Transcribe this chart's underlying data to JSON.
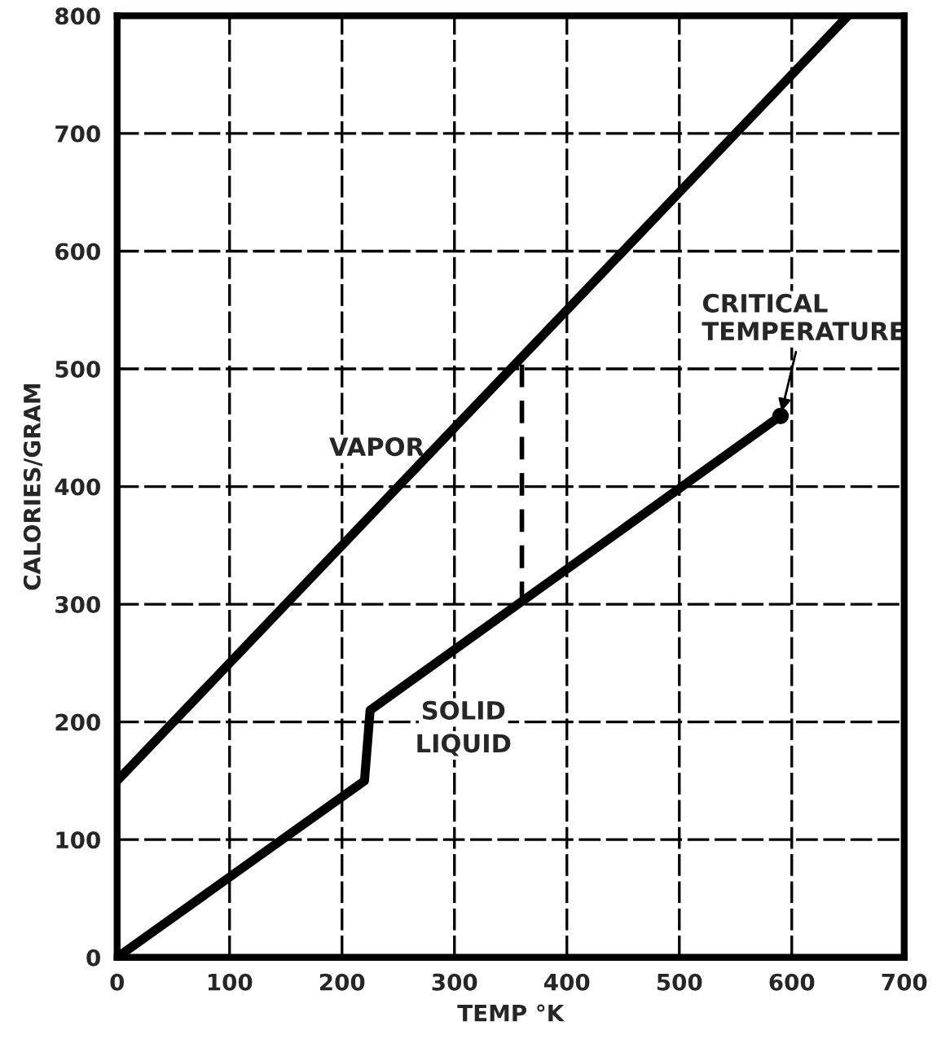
{
  "chart_data": {
    "type": "line",
    "xlabel": "TEMP °K",
    "ylabel": "CALORIES/GRAM",
    "xlim": [
      0,
      700
    ],
    "ylim": [
      0,
      800
    ],
    "xticks": [
      0,
      100,
      200,
      300,
      400,
      500,
      600,
      700
    ],
    "yticks": [
      0,
      100,
      200,
      300,
      400,
      500,
      600,
      700,
      800
    ],
    "grid": true,
    "marker": "none",
    "line_style": "solid",
    "series": [
      {
        "color": "#000000",
        "x": [
          0,
          650
        ],
        "values": [
          150,
          800
        ]
      },
      {
        "color": "#000000",
        "x": [
          0,
          220,
          225,
          590
        ],
        "values": [
          0,
          150,
          210,
          460
        ]
      },
      {
        "color": "#000000",
        "x": [
          360,
          360
        ],
        "values": [
          300,
          510
        ],
        "line_style": "dashed"
      },
      {
        "type": "scatter",
        "color": "#000000",
        "x": [
          590
        ],
        "values": [
          460
        ],
        "marker": "circle"
      }
    ],
    "annotations": [
      "VAPOR",
      "SOLID",
      "LIQUID",
      {
        "text": "CRITICAL\nTEMPERATURE",
        "x": 590,
        "y": 460
      }
    ]
  }
}
